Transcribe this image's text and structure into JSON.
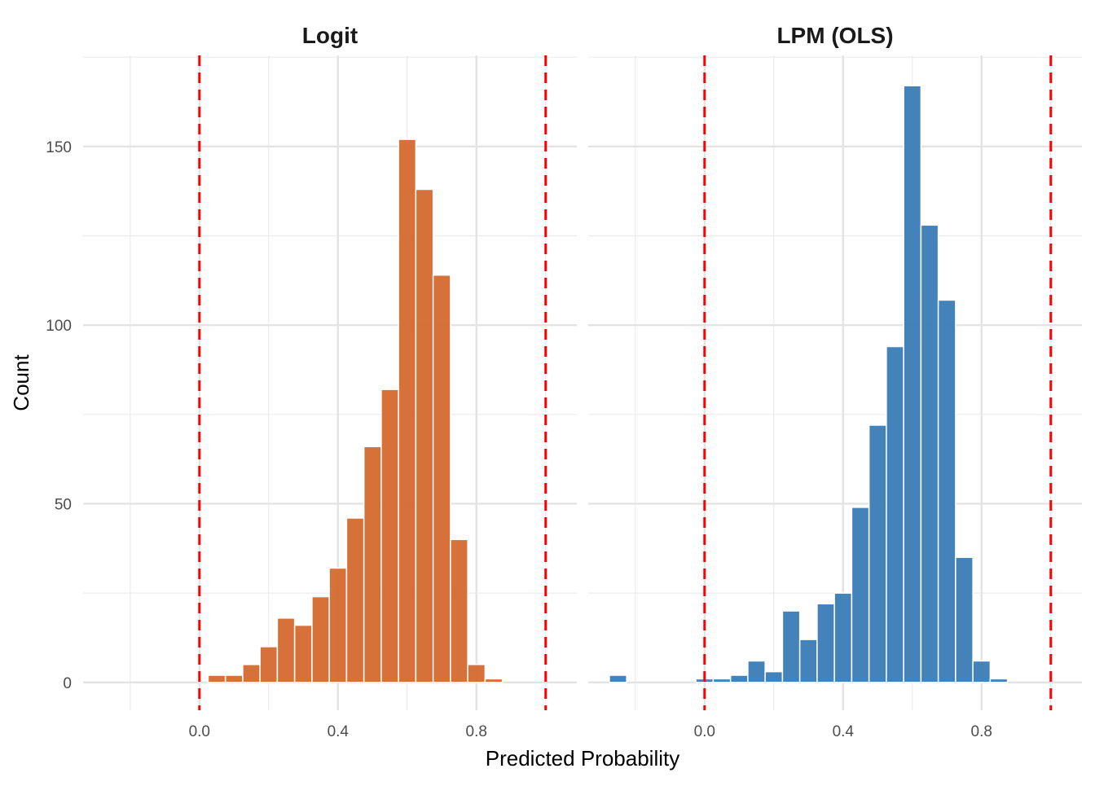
{
  "chart_data": {
    "type": "bar",
    "subtype": "faceted histogram",
    "xlabel": "Predicted Probability",
    "ylabel": "Count",
    "xlim": [
      -0.336,
      1.09
    ],
    "ylim": [
      -7.8,
      175.5
    ],
    "x_ticks": [
      0.0,
      0.4,
      0.8
    ],
    "x_tick_labels": [
      "0.0",
      "0.4",
      "0.8"
    ],
    "x_minor_grid": [
      -0.2,
      0.2,
      0.6,
      1.0
    ],
    "y_ticks": [
      0,
      50,
      100,
      150
    ],
    "y_tick_labels": [
      "0",
      "50",
      "100",
      "150"
    ],
    "y_minor_grid": [
      25,
      75,
      125,
      175
    ],
    "bin_width": 0.05,
    "reference_lines": {
      "values": [
        0,
        1
      ],
      "style": "dashed",
      "color": "#ff0000"
    },
    "grid": true,
    "panels": [
      {
        "title": "Logit",
        "color": "#d4692f",
        "bin_centers": [
          0.05,
          0.1,
          0.15,
          0.2,
          0.25,
          0.3,
          0.35,
          0.4,
          0.45,
          0.5,
          0.55,
          0.6,
          0.65,
          0.7,
          0.75,
          0.8,
          0.85
        ],
        "counts": [
          2,
          2,
          5,
          10,
          18,
          16,
          24,
          32,
          46,
          66,
          82,
          152,
          138,
          114,
          40,
          5,
          1
        ]
      },
      {
        "title": "LPM (OLS)",
        "color": "#3a7bb6",
        "bin_centers": [
          -0.25,
          0.0,
          0.05,
          0.1,
          0.15,
          0.2,
          0.25,
          0.3,
          0.35,
          0.4,
          0.45,
          0.5,
          0.55,
          0.6,
          0.65,
          0.7,
          0.75,
          0.8,
          0.85
        ],
        "counts": [
          2,
          1,
          1,
          2,
          6,
          3,
          20,
          12,
          22,
          25,
          49,
          72,
          94,
          167,
          128,
          107,
          35,
          6,
          1
        ]
      }
    ]
  }
}
